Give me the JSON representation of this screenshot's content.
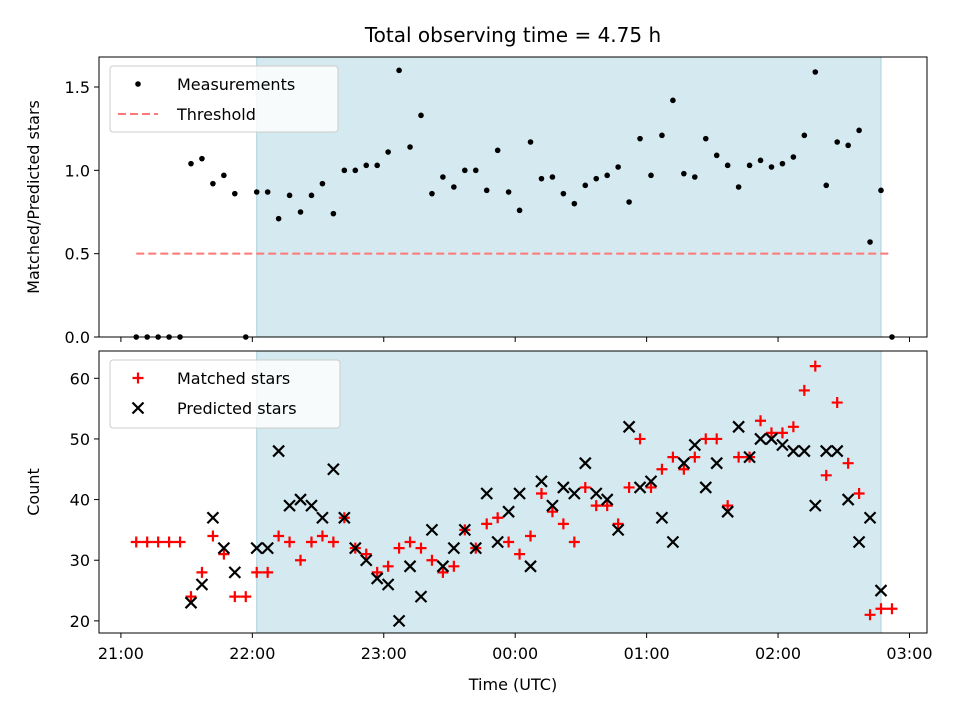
{
  "title": "Total observing time = 4.75 h",
  "colors": {
    "window": "#d4eaf0",
    "window_edge": "#a9d1dc",
    "threshold": "#ff7777",
    "matched": "#ff0000",
    "predicted": "#000000",
    "measurement": "#000000"
  },
  "chart_data": [
    {
      "type": "scatter",
      "panel": "top",
      "title": "Total observing time = 4.75 h",
      "ylabel": "Matched/Predicted stars",
      "ylim": [
        0,
        1.68
      ],
      "yticks": [
        0.0,
        0.5,
        1.0,
        1.5
      ],
      "ytick_labels": [
        "0.0",
        "0.5",
        "1.0",
        "1.5"
      ],
      "x_unit": "minutes after 21:00 UTC",
      "xlim": [
        -10,
        368
      ],
      "observing_window": [
        "22:02",
        "02:47"
      ],
      "legend_position": "upper-left",
      "legend": {
        "measurements": "Measurements",
        "threshold": "Threshold"
      },
      "threshold": {
        "name": "Threshold",
        "value": 0.5,
        "x_range": [
          "21:07",
          "02:52"
        ]
      },
      "series": [
        {
          "name": "Measurements",
          "marker": "dot",
          "points": [
            [
              "21:07",
              0.0
            ],
            [
              "21:12",
              0.0
            ],
            [
              "21:17",
              0.0
            ],
            [
              "21:22",
              0.0
            ],
            [
              "21:27",
              0.0
            ],
            [
              "21:32",
              1.04
            ],
            [
              "21:37",
              1.07
            ],
            [
              "21:42",
              0.92
            ],
            [
              "21:47",
              0.97
            ],
            [
              "21:52",
              0.86
            ],
            [
              "21:57",
              0.0
            ],
            [
              "22:02",
              0.87
            ],
            [
              "22:07",
              0.87
            ],
            [
              "22:12",
              0.71
            ],
            [
              "22:17",
              0.85
            ],
            [
              "22:22",
              0.75
            ],
            [
              "22:27",
              0.85
            ],
            [
              "22:32",
              0.92
            ],
            [
              "22:37",
              0.74
            ],
            [
              "22:42",
              1.0
            ],
            [
              "22:47",
              1.0
            ],
            [
              "22:52",
              1.03
            ],
            [
              "22:57",
              1.03
            ],
            [
              "23:02",
              1.11
            ],
            [
              "23:07",
              1.6
            ],
            [
              "23:12",
              1.14
            ],
            [
              "23:17",
              1.33
            ],
            [
              "23:22",
              0.86
            ],
            [
              "23:27",
              0.96
            ],
            [
              "23:32",
              0.9
            ],
            [
              "23:37",
              1.0
            ],
            [
              "23:42",
              1.0
            ],
            [
              "23:47",
              0.88
            ],
            [
              "23:52",
              1.12
            ],
            [
              "23:57",
              0.87
            ],
            [
              "00:02",
              0.76
            ],
            [
              "00:07",
              1.17
            ],
            [
              "00:12",
              0.95
            ],
            [
              "00:17",
              0.96
            ],
            [
              "00:22",
              0.86
            ],
            [
              "00:27",
              0.8
            ],
            [
              "00:32",
              0.91
            ],
            [
              "00:37",
              0.95
            ],
            [
              "00:42",
              0.97
            ],
            [
              "00:47",
              1.02
            ],
            [
              "00:52",
              0.81
            ],
            [
              "00:57",
              1.19
            ],
            [
              "01:02",
              0.97
            ],
            [
              "01:07",
              1.21
            ],
            [
              "01:12",
              1.42
            ],
            [
              "01:17",
              0.98
            ],
            [
              "01:22",
              0.96
            ],
            [
              "01:27",
              1.19
            ],
            [
              "01:32",
              1.09
            ],
            [
              "01:37",
              1.03
            ],
            [
              "01:42",
              0.9
            ],
            [
              "01:47",
              1.03
            ],
            [
              "01:52",
              1.06
            ],
            [
              "01:57",
              1.02
            ],
            [
              "02:02",
              1.04
            ],
            [
              "02:07",
              1.08
            ],
            [
              "02:12",
              1.21
            ],
            [
              "02:17",
              1.59
            ],
            [
              "02:22",
              0.91
            ],
            [
              "02:27",
              1.17
            ],
            [
              "02:32",
              1.15
            ],
            [
              "02:37",
              1.24
            ],
            [
              "02:42",
              0.57
            ],
            [
              "02:47",
              0.88
            ],
            [
              "02:52",
              0.0
            ]
          ]
        }
      ]
    },
    {
      "type": "scatter",
      "panel": "bottom",
      "xlabel": "Time (UTC)",
      "ylabel": "Count",
      "ylim": [
        18,
        64.5
      ],
      "yticks": [
        20,
        30,
        40,
        50,
        60
      ],
      "ytick_labels": [
        "20",
        "30",
        "40",
        "50",
        "60"
      ],
      "xticks": [
        "21:00",
        "22:00",
        "23:00",
        "00:00",
        "01:00",
        "02:00",
        "03:00"
      ],
      "xtick_labels": [
        "21:00",
        "22:00",
        "23:00",
        "00:00",
        "01:00",
        "02:00",
        "03:00"
      ],
      "xlim": [
        -10,
        368
      ],
      "observing_window": [
        "22:02",
        "02:47"
      ],
      "legend_position": "upper-left",
      "series": [
        {
          "name": "Matched stars",
          "marker": "plus",
          "points": [
            [
              "21:07",
              33
            ],
            [
              "21:12",
              33
            ],
            [
              "21:17",
              33
            ],
            [
              "21:22",
              33
            ],
            [
              "21:27",
              33
            ],
            [
              "21:32",
              24
            ],
            [
              "21:37",
              28
            ],
            [
              "21:42",
              34
            ],
            [
              "21:47",
              31
            ],
            [
              "21:52",
              24
            ],
            [
              "21:57",
              24
            ],
            [
              "22:02",
              28
            ],
            [
              "22:07",
              28
            ],
            [
              "22:12",
              34
            ],
            [
              "22:17",
              33
            ],
            [
              "22:22",
              30
            ],
            [
              "22:27",
              33
            ],
            [
              "22:32",
              34
            ],
            [
              "22:37",
              33
            ],
            [
              "22:42",
              37
            ],
            [
              "22:47",
              32
            ],
            [
              "22:52",
              31
            ],
            [
              "22:57",
              28
            ],
            [
              "23:02",
              29
            ],
            [
              "23:07",
              32
            ],
            [
              "23:12",
              33
            ],
            [
              "23:17",
              32
            ],
            [
              "23:22",
              30
            ],
            [
              "23:27",
              28
            ],
            [
              "23:32",
              29
            ],
            [
              "23:37",
              35
            ],
            [
              "23:42",
              32
            ],
            [
              "23:47",
              36
            ],
            [
              "23:52",
              37
            ],
            [
              "23:57",
              33
            ],
            [
              "00:02",
              31
            ],
            [
              "00:07",
              34
            ],
            [
              "00:12",
              41
            ],
            [
              "00:17",
              38
            ],
            [
              "00:22",
              36
            ],
            [
              "00:27",
              33
            ],
            [
              "00:32",
              42
            ],
            [
              "00:37",
              39
            ],
            [
              "00:42",
              39
            ],
            [
              "00:47",
              36
            ],
            [
              "00:52",
              42
            ],
            [
              "00:57",
              50
            ],
            [
              "01:02",
              42
            ],
            [
              "01:07",
              45
            ],
            [
              "01:12",
              47
            ],
            [
              "01:17",
              45
            ],
            [
              "01:22",
              47
            ],
            [
              "01:27",
              50
            ],
            [
              "01:32",
              50
            ],
            [
              "01:37",
              39
            ],
            [
              "01:42",
              47
            ],
            [
              "01:47",
              47
            ],
            [
              "01:52",
              53
            ],
            [
              "01:57",
              51
            ],
            [
              "02:02",
              51
            ],
            [
              "02:07",
              52
            ],
            [
              "02:12",
              58
            ],
            [
              "02:17",
              62
            ],
            [
              "02:22",
              44
            ],
            [
              "02:27",
              56
            ],
            [
              "02:32",
              46
            ],
            [
              "02:37",
              41
            ],
            [
              "02:42",
              21
            ],
            [
              "02:47",
              22
            ],
            [
              "02:52",
              22
            ]
          ]
        },
        {
          "name": "Predicted stars",
          "marker": "x",
          "points": [
            [
              "21:32",
              23
            ],
            [
              "21:37",
              26
            ],
            [
              "21:42",
              37
            ],
            [
              "21:47",
              32
            ],
            [
              "21:52",
              28
            ],
            [
              "22:02",
              32
            ],
            [
              "22:07",
              32
            ],
            [
              "22:12",
              48
            ],
            [
              "22:17",
              39
            ],
            [
              "22:22",
              40
            ],
            [
              "22:27",
              39
            ],
            [
              "22:32",
              37
            ],
            [
              "22:37",
              45
            ],
            [
              "22:42",
              37
            ],
            [
              "22:47",
              32
            ],
            [
              "22:52",
              30
            ],
            [
              "22:57",
              27
            ],
            [
              "23:02",
              26
            ],
            [
              "23:07",
              20
            ],
            [
              "23:12",
              29
            ],
            [
              "23:17",
              24
            ],
            [
              "23:22",
              35
            ],
            [
              "23:27",
              29
            ],
            [
              "23:32",
              32
            ],
            [
              "23:37",
              35
            ],
            [
              "23:42",
              32
            ],
            [
              "23:47",
              41
            ],
            [
              "23:52",
              33
            ],
            [
              "23:57",
              38
            ],
            [
              "00:02",
              41
            ],
            [
              "00:07",
              29
            ],
            [
              "00:12",
              43
            ],
            [
              "00:17",
              39
            ],
            [
              "00:22",
              42
            ],
            [
              "00:27",
              41
            ],
            [
              "00:32",
              46
            ],
            [
              "00:37",
              41
            ],
            [
              "00:42",
              40
            ],
            [
              "00:47",
              35
            ],
            [
              "00:52",
              52
            ],
            [
              "00:57",
              42
            ],
            [
              "01:02",
              43
            ],
            [
              "01:07",
              37
            ],
            [
              "01:12",
              33
            ],
            [
              "01:17",
              46
            ],
            [
              "01:22",
              49
            ],
            [
              "01:27",
              42
            ],
            [
              "01:32",
              46
            ],
            [
              "01:37",
              38
            ],
            [
              "01:42",
              52
            ],
            [
              "01:47",
              47
            ],
            [
              "01:52",
              50
            ],
            [
              "01:57",
              50
            ],
            [
              "02:02",
              49
            ],
            [
              "02:07",
              48
            ],
            [
              "02:12",
              48
            ],
            [
              "02:17",
              39
            ],
            [
              "02:22",
              48
            ],
            [
              "02:27",
              48
            ],
            [
              "02:32",
              40
            ],
            [
              "02:37",
              33
            ],
            [
              "02:42",
              37
            ],
            [
              "02:47",
              25
            ]
          ]
        }
      ]
    }
  ]
}
